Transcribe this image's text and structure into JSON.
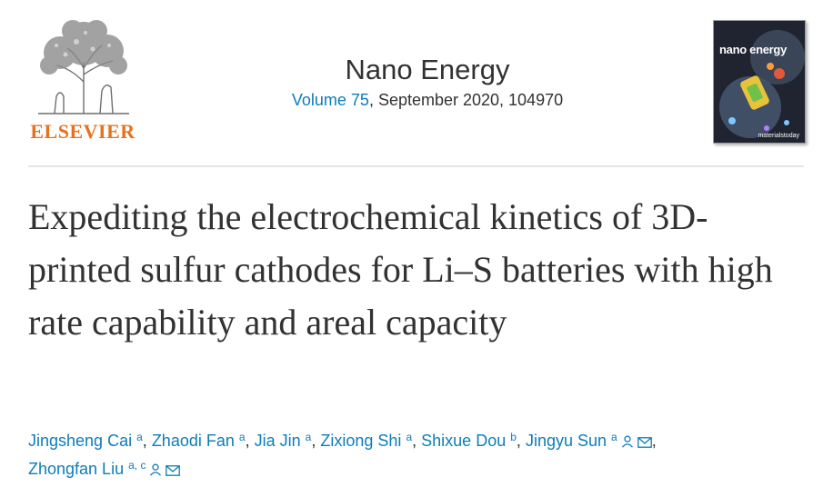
{
  "publisher": {
    "name": "ELSEVIER"
  },
  "journal": {
    "title": "Nano Energy",
    "volume_link": "Volume 75",
    "details": ", September 2020, 104970",
    "cover_title": "nano energy",
    "cover_footer": "materialstoday"
  },
  "article": {
    "title": "Expediting the electrochemical kinetics of 3D-printed sulfur cathodes for Li–S batteries with high rate capability and areal capacity"
  },
  "authors": [
    {
      "name": "Jingsheng Cai",
      "aff": "a",
      "sep": ","
    },
    {
      "name": "Zhaodi Fan",
      "aff": "a",
      "sep": ","
    },
    {
      "name": "Jia Jin",
      "aff": "a",
      "sep": ","
    },
    {
      "name": "Zixiong Shi",
      "aff": "a",
      "sep": ","
    },
    {
      "name": "Shixue Dou",
      "aff": "b",
      "sep": ","
    },
    {
      "name": "Jingyu Sun",
      "aff": "a",
      "sep": ","
    },
    {
      "name": "Zhongfan Liu",
      "aff": "a, c",
      "sep": ""
    }
  ],
  "icons": {
    "person": "person-icon",
    "email": "email-icon"
  },
  "colors": {
    "link": "#0c7dbb",
    "text": "#323232",
    "brand": "#e9711c",
    "divider": "#e6e6e6"
  }
}
